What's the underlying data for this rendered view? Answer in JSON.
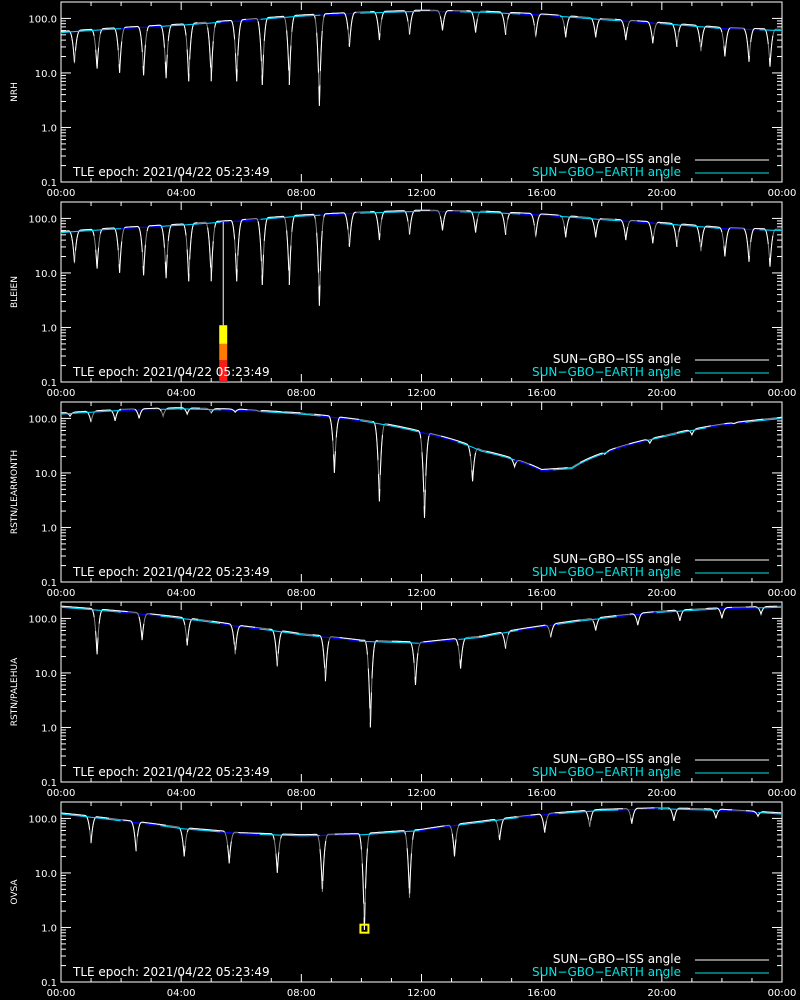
{
  "chart_data": [
    {
      "type": "line",
      "ylabel": "NRH",
      "ylog": true,
      "ylim": [
        0.1,
        200
      ],
      "yticks": [
        "0.1",
        "1.0",
        "10.0",
        "100.0"
      ],
      "xlim": [
        0,
        24
      ],
      "xticks": [
        "00:00",
        "04:00",
        "08:00",
        "12:00",
        "16:00",
        "20:00",
        "00:00"
      ],
      "annotation": "TLE epoch: 2021/04/22 05:23:49",
      "legend": [
        "SUN−GBO−ISS angle",
        "SUN−GBO−EARTH angle"
      ],
      "legend_position": "bottom-right",
      "iss_min_times": [
        0.45,
        1.2,
        1.95,
        2.75,
        3.5,
        4.25,
        5.0,
        5.85,
        6.7,
        7.6,
        8.6,
        9.6,
        10.6,
        11.6,
        12.7,
        13.8,
        14.8,
        15.8,
        16.8,
        17.8,
        18.8,
        19.7,
        20.5,
        21.3,
        22.1,
        22.9,
        23.6
      ],
      "iss_min_values": [
        15,
        12,
        10,
        9,
        8,
        7,
        7,
        7,
        6,
        6,
        2.5,
        30,
        40,
        50,
        60,
        55,
        50,
        45,
        45,
        45,
        40,
        35,
        30,
        25,
        20,
        16,
        13
      ],
      "earth_angle_x": [
        0,
        2,
        4,
        6,
        8,
        10,
        12,
        14,
        16,
        18,
        20,
        22,
        24
      ],
      "earth_angle_y": [
        55,
        65,
        75,
        90,
        110,
        125,
        135,
        130,
        115,
        95,
        80,
        65,
        60
      ],
      "markers": []
    },
    {
      "type": "line",
      "ylabel": "BLEIEN",
      "ylog": true,
      "ylim": [
        0.1,
        200
      ],
      "yticks": [
        "0.1",
        "1.0",
        "10.0",
        "100.0"
      ],
      "xlim": [
        0,
        24
      ],
      "xticks": [
        "00:00",
        "04:00",
        "08:00",
        "12:00",
        "16:00",
        "20:00",
        "00:00"
      ],
      "annotation": "TLE epoch: 2021/04/22 05:23:49",
      "legend": [
        "SUN−GBO−ISS angle",
        "SUN−GBO−EARTH angle"
      ],
      "legend_position": "bottom-right",
      "iss_min_times": [
        0.45,
        1.2,
        1.95,
        2.75,
        3.5,
        4.25,
        5.0,
        5.85,
        6.7,
        7.6,
        8.6,
        9.6,
        10.6,
        11.6,
        12.7,
        13.8,
        14.8,
        15.8,
        16.8,
        17.8,
        18.8,
        19.7,
        20.5,
        21.3,
        22.1,
        22.9,
        23.6
      ],
      "iss_min_values": [
        15,
        12,
        10,
        9,
        8,
        7,
        7,
        7,
        6,
        6,
        2.5,
        30,
        40,
        50,
        60,
        55,
        50,
        45,
        45,
        45,
        40,
        35,
        30,
        25,
        20,
        16,
        13
      ],
      "earth_angle_x": [
        0,
        2,
        4,
        6,
        8,
        10,
        12,
        14,
        16,
        18,
        20,
        22,
        24
      ],
      "earth_angle_y": [
        55,
        65,
        75,
        90,
        110,
        125,
        135,
        130,
        115,
        95,
        80,
        65,
        60
      ],
      "markers": [
        {
          "kind": "intensity-bar",
          "x": 5.4,
          "levels": [
            {
              "from": 0.1,
              "to": 0.25,
              "color": "#ff1a1a"
            },
            {
              "from": 0.25,
              "to": 0.5,
              "color": "#ff7a00"
            },
            {
              "from": 0.5,
              "to": 1.1,
              "color": "#ffff00"
            }
          ]
        }
      ]
    },
    {
      "type": "line",
      "ylabel": "RSTN/LEARMONTH",
      "ylog": true,
      "ylim": [
        0.1,
        200
      ],
      "yticks": [
        "0.1",
        "1.0",
        "10.0",
        "100.0"
      ],
      "xlim": [
        0,
        24
      ],
      "xticks": [
        "00:00",
        "04:00",
        "08:00",
        "12:00",
        "16:00",
        "20:00",
        "00:00"
      ],
      "annotation": "TLE epoch: 2021/04/22 05:23:49",
      "legend": [
        "SUN−GBO−ISS angle",
        "SUN−GBO−EARTH angle"
      ],
      "legend_position": "bottom-right",
      "iss_min_times": [
        0.3,
        1.0,
        1.8,
        2.6,
        3.4,
        4.2,
        5.0,
        5.8,
        6.6,
        7.4,
        8.2,
        9.1,
        10.6,
        12.1,
        13.7,
        15.1,
        16.6,
        18.1,
        19.6,
        21.0,
        22.4,
        23.6
      ],
      "iss_min_values": [
        110,
        85,
        90,
        100,
        110,
        120,
        125,
        130,
        135,
        130,
        120,
        10,
        3,
        1.5,
        7,
        13,
        17,
        22,
        35,
        50,
        80,
        110
      ],
      "earth_angle_x": [
        0,
        2,
        4,
        6,
        8,
        10,
        12,
        14,
        16,
        17,
        18,
        20,
        22,
        24
      ],
      "earth_angle_y": [
        120,
        140,
        150,
        140,
        120,
        90,
        55,
        25,
        11,
        12,
        22,
        45,
        75,
        100
      ],
      "markers": []
    },
    {
      "type": "line",
      "ylabel": "RSTN/PALEHUA",
      "ylog": true,
      "ylim": [
        0.1,
        200
      ],
      "yticks": [
        "0.1",
        "1.0",
        "10.0",
        "100.0"
      ],
      "xlim": [
        0,
        24
      ],
      "xticks": [
        "00:00",
        "04:00",
        "08:00",
        "12:00",
        "16:00",
        "20:00",
        "00:00"
      ],
      "annotation": "TLE epoch: 2021/04/22 05:23:49",
      "legend": [
        "SUN−GBO−ISS angle",
        "SUN−GBO−EARTH angle"
      ],
      "legend_position": "bottom-right",
      "iss_min_times": [
        1.2,
        2.7,
        4.2,
        5.8,
        7.2,
        8.8,
        10.3,
        11.8,
        13.3,
        14.8,
        16.3,
        17.8,
        19.2,
        20.6,
        22.0,
        23.3
      ],
      "iss_min_values": [
        22,
        40,
        32,
        22,
        13,
        7,
        1.0,
        6,
        12,
        28,
        45,
        60,
        75,
        90,
        100,
        120
      ],
      "earth_angle_x": [
        0,
        2,
        4,
        6,
        8,
        10,
        12,
        14,
        16,
        18,
        20,
        22,
        24
      ],
      "earth_angle_y": [
        160,
        130,
        100,
        70,
        50,
        38,
        35,
        45,
        70,
        100,
        130,
        150,
        160
      ],
      "markers": []
    },
    {
      "type": "line",
      "ylabel": "OVSA",
      "ylog": true,
      "ylim": [
        0.1,
        200
      ],
      "yticks": [
        "0.1",
        "1.0",
        "10.0",
        "100.0"
      ],
      "xlim": [
        0,
        24
      ],
      "xticks": [
        "00:00",
        "04:00",
        "08:00",
        "12:00",
        "16:00",
        "20:00",
        "00:00"
      ],
      "annotation": "TLE epoch: 2021/04/22 05:23:49",
      "legend": [
        "SUN−GBO−ISS angle",
        "SUN−GBO−EARTH angle"
      ],
      "legend_position": "bottom-right",
      "iss_min_times": [
        1.0,
        2.5,
        4.1,
        5.6,
        7.2,
        8.7,
        10.1,
        11.6,
        13.1,
        14.6,
        16.1,
        17.6,
        19.0,
        20.4,
        21.8,
        23.2
      ],
      "iss_min_values": [
        35,
        25,
        20,
        15,
        10,
        4.5,
        0.9,
        3.5,
        20,
        40,
        55,
        70,
        80,
        90,
        100,
        110
      ],
      "earth_angle_x": [
        0,
        2,
        4,
        6,
        8,
        10,
        12,
        14,
        16,
        18,
        20,
        22,
        24
      ],
      "earth_angle_y": [
        120,
        90,
        65,
        52,
        48,
        50,
        60,
        85,
        115,
        140,
        150,
        140,
        120
      ],
      "markers": [
        {
          "kind": "box",
          "x": 10.1,
          "y": 0.95,
          "color": "#ffff00"
        }
      ]
    }
  ]
}
